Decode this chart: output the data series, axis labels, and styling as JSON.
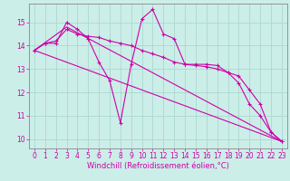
{
  "background_color": "#cceee8",
  "grid_color": "#aad8d0",
  "line_color": "#cc00aa",
  "xlabel": "Windchill (Refroidissement éolien,°C)",
  "xlabel_fontsize": 6,
  "tick_fontsize": 5.5,
  "ylim": [
    9.6,
    15.8
  ],
  "xlim": [
    -0.5,
    23.5
  ],
  "yticks": [
    10,
    11,
    12,
    13,
    14,
    15
  ],
  "xticks": [
    0,
    1,
    2,
    3,
    4,
    5,
    6,
    7,
    8,
    9,
    10,
    11,
    12,
    13,
    14,
    15,
    16,
    17,
    18,
    19,
    20,
    21,
    22,
    23
  ],
  "s1x": [
    0,
    1,
    2,
    3,
    4,
    5,
    6,
    7,
    8,
    9,
    10,
    11,
    12,
    13,
    14,
    15,
    16,
    17,
    18,
    19,
    20,
    21,
    22,
    23
  ],
  "s1y": [
    13.8,
    14.1,
    14.1,
    15.0,
    14.7,
    14.3,
    13.3,
    12.5,
    10.7,
    13.2,
    15.15,
    15.55,
    14.5,
    14.3,
    13.2,
    13.2,
    13.2,
    13.15,
    12.85,
    12.4,
    11.5,
    11.0,
    10.3,
    9.9
  ],
  "s2x": [
    0,
    1,
    2,
    3,
    4,
    5,
    6,
    7,
    8,
    9,
    10,
    11,
    12,
    13,
    14,
    15,
    16,
    17,
    18,
    19,
    20,
    21,
    22,
    23
  ],
  "s2y": [
    13.8,
    14.1,
    14.2,
    14.7,
    14.5,
    14.4,
    14.35,
    14.2,
    14.1,
    14.0,
    13.8,
    13.65,
    13.5,
    13.3,
    13.2,
    13.15,
    13.1,
    13.0,
    12.85,
    12.7,
    12.1,
    11.5,
    10.3,
    9.9
  ],
  "s3x": [
    0,
    3,
    23
  ],
  "s3y": [
    13.8,
    14.8,
    9.9
  ],
  "s4x": [
    0,
    23
  ],
  "s4y": [
    13.8,
    9.9
  ]
}
